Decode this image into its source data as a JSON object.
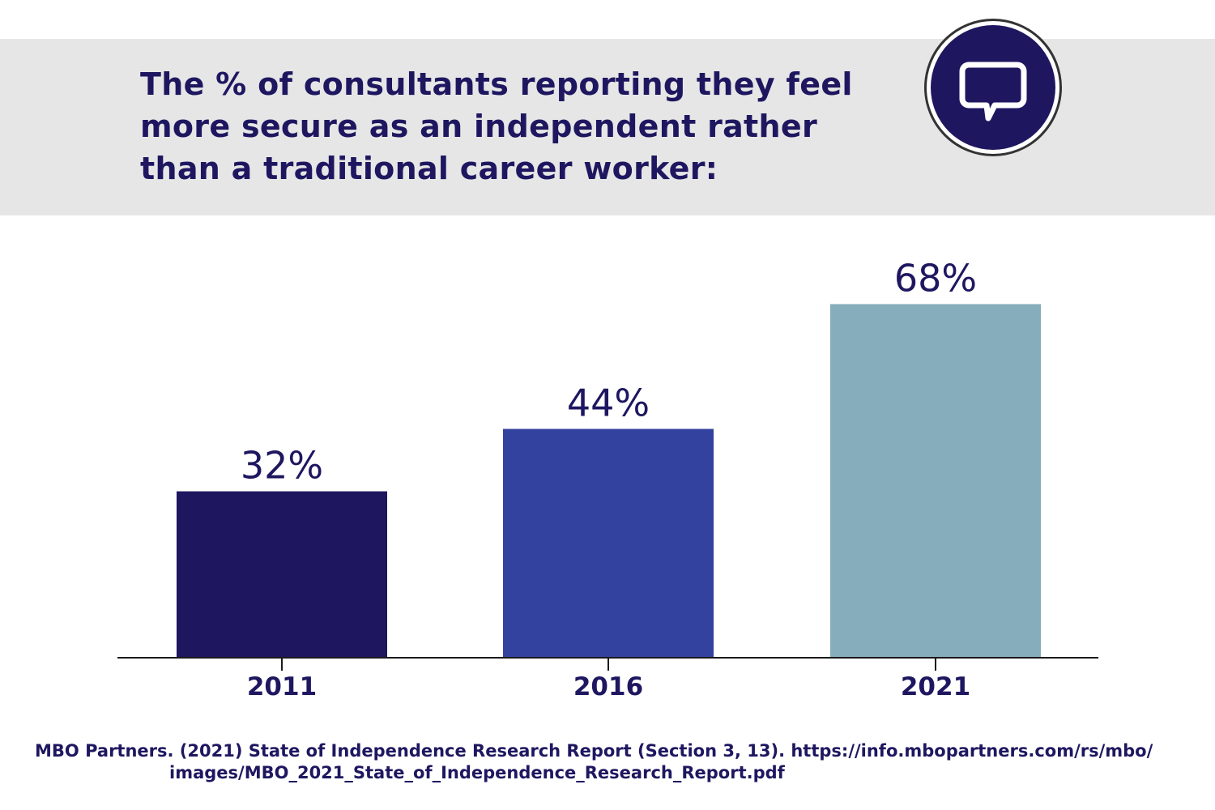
{
  "title": "The % of consultants reporting they feel more secure as an independent rather than a traditional career worker:",
  "icon": "speech-bubble-icon",
  "colors": {
    "title": "#1e1760",
    "header_band": "#e6e6e6",
    "bar_2011": "#1e1760",
    "bar_2016": "#33429e",
    "bar_2021": "#86adbb",
    "axis": "#1a1a1a"
  },
  "chart_data": {
    "type": "bar",
    "categories": [
      "2011",
      "2016",
      "2021"
    ],
    "values": [
      32,
      44,
      68
    ],
    "value_labels": [
      "32%",
      "44%",
      "68%"
    ],
    "bar_colors": [
      "#1e1760",
      "#33429e",
      "#86adbb"
    ],
    "title": "The % of consultants reporting they feel more secure as an independent rather than a traditional career worker:",
    "xlabel": "",
    "ylabel": "",
    "ylim": [
      0,
      100
    ],
    "grid": false,
    "legend": "none"
  },
  "source": {
    "line1": "MBO Partners. (2021) State of Independence Research Report (Section 3, 13). https://info.mbopartners.com/rs/mbo/",
    "line2": "images/MBO_2021_State_of_Independence_Research_Report.pdf"
  }
}
